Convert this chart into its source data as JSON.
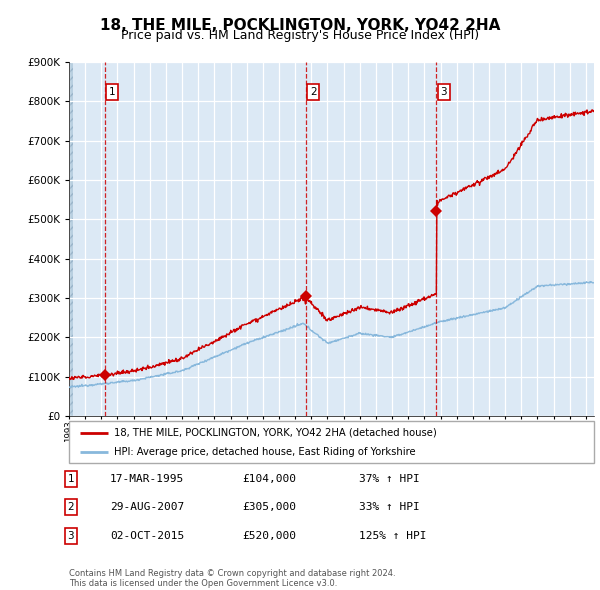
{
  "title": "18, THE MILE, POCKLINGTON, YORK, YO42 2HA",
  "subtitle": "Price paid vs. HM Land Registry's House Price Index (HPI)",
  "title_fontsize": 11,
  "subtitle_fontsize": 9,
  "property_label": "18, THE MILE, POCKLINGTON, YORK, YO42 2HA (detached house)",
  "hpi_label": "HPI: Average price, detached house, East Riding of Yorkshire",
  "transactions": [
    {
      "num": 1,
      "date": "17-MAR-1995",
      "price": 104000,
      "pct": "37%",
      "dir": "↑",
      "year_x": 1995.21
    },
    {
      "num": 2,
      "date": "29-AUG-2007",
      "price": 305000,
      "pct": "33%",
      "dir": "↑",
      "year_x": 2007.66
    },
    {
      "num": 3,
      "date": "02-OCT-2015",
      "price": 520000,
      "pct": "125%",
      "dir": "↑",
      "year_x": 2015.75
    }
  ],
  "footer": "Contains HM Land Registry data © Crown copyright and database right 2024.\nThis data is licensed under the Open Government Licence v3.0.",
  "bg_color": "#dce9f5",
  "hatch_color": "#b8cfe0",
  "grid_color": "#ffffff",
  "red_color": "#cc0000",
  "blue_color": "#88b8dc",
  "plot_bg": "#dce9f5",
  "ylim": [
    0,
    900000
  ],
  "xmin": 1993.0,
  "xmax": 2025.5
}
